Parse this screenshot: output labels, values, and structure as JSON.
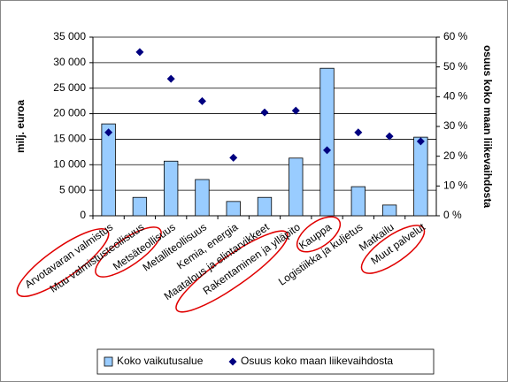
{
  "chart_data": {
    "type": "combo",
    "categories": [
      "Arvotavaran valmistus",
      "Muu valmistusteollisuus",
      "Metsäteollisuus",
      "Metalliteollisuus",
      "Kemia, energia",
      "Maatalous ja elintarvikkeet",
      "Rakentaminen ja ylläpito",
      "Kauppa",
      "Logistiikka ja kuljetus",
      "Matkailu",
      "Muut palvelut"
    ],
    "series": [
      {
        "name": "Koko vaikutusalue",
        "type": "bar",
        "color": "#99ccff",
        "values": [
          18000,
          3600,
          10700,
          7100,
          2800,
          3600,
          11300,
          28900,
          5700,
          2100,
          15400
        ]
      },
      {
        "name": "Osuus koko maan liikevaihdosta",
        "type": "scatter",
        "axis": "y2",
        "color": "#000080",
        "values": [
          28,
          55,
          46,
          38.5,
          19.5,
          34.7,
          35.3,
          22,
          28,
          26.7,
          25
        ]
      }
    ],
    "ylabel": "milj. euroa",
    "y2label": "osuus koko maan liikevaihdosta",
    "ylim": [
      0,
      35000
    ],
    "yticks": [
      0,
      {
        "value": 5000,
        "label": "5 000"
      },
      {
        "value": 10000,
        "label": "10 000"
      },
      {
        "value": 15000,
        "label": "15 000"
      },
      {
        "value": 20000,
        "label": "20 000"
      },
      {
        "value": 25000,
        "label": "25 000"
      },
      {
        "value": 30000,
        "label": "30 000"
      },
      {
        "value": 35000,
        "label": "35 000"
      }
    ],
    "y2lim": [
      0,
      60
    ],
    "y2ticks": [
      {
        "value": 0,
        "label": "0 %"
      },
      {
        "value": 10,
        "label": "10 %"
      },
      {
        "value": 20,
        "label": "20 %"
      },
      {
        "value": 30,
        "label": "30 %"
      },
      {
        "value": 40,
        "label": "40 %"
      },
      {
        "value": 50,
        "label": "50 %"
      },
      {
        "value": 60,
        "label": "60 %"
      }
    ],
    "grid": true,
    "legend": "bottom"
  }
}
